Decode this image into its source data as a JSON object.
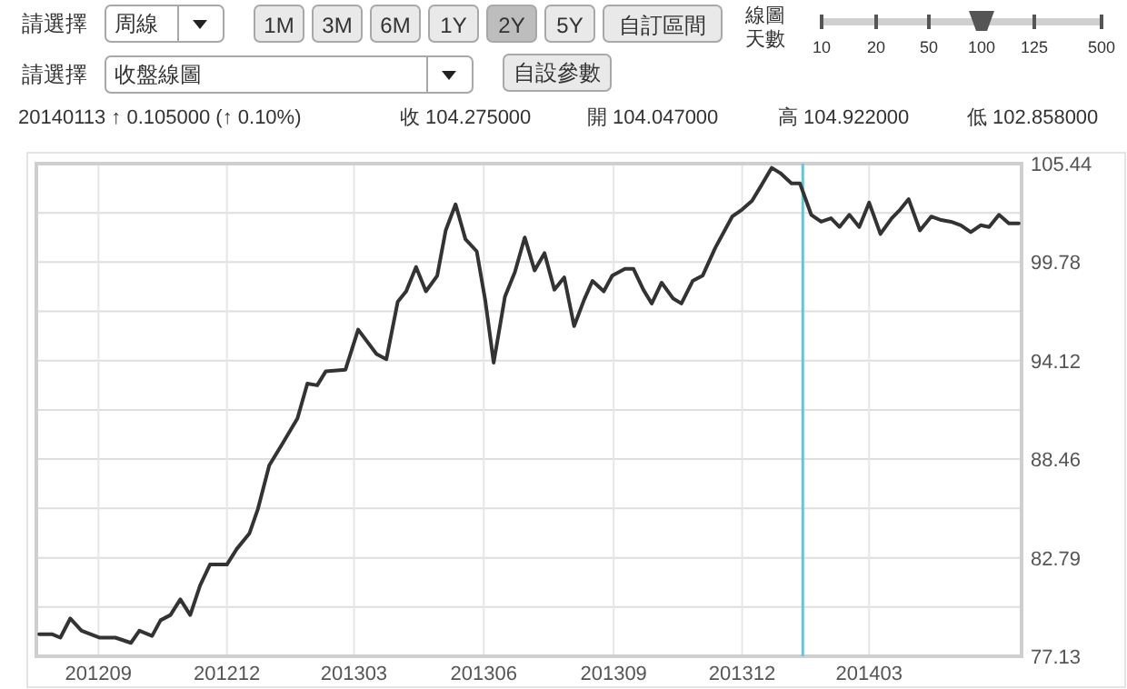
{
  "chart_data": {
    "type": "line",
    "annotations": [
      "請選擇",
      "周線",
      "1M",
      "3M",
      "6M",
      "1Y",
      "2Y",
      "5Y",
      "自訂區間",
      "線圖",
      "天數",
      "10",
      "20",
      "50",
      "100",
      "125",
      "500",
      "請選擇",
      "收盤線圖",
      "自設參數",
      "20140113 ↑ 0.105000 (↑ 0.10%)",
      "收 104.275000",
      "開 104.047000",
      "高 104.922000",
      "低 102.858000"
    ],
    "x": [
      "2012-07-21",
      "2012-07-30",
      "2012-08-05",
      "2012-08-12",
      "2012-08-20",
      "2012-09-02",
      "2012-09-13",
      "2012-09-24",
      "2012-09-30",
      "2012-10-09",
      "2012-10-15",
      "2012-10-22",
      "2012-10-29",
      "2012-11-05",
      "2012-11-12",
      "2012-11-19",
      "2012-12-01",
      "2012-12-08",
      "2012-12-17",
      "2012-12-23",
      "2012-12-31",
      "2013-01-09",
      "2013-01-20",
      "2013-01-27",
      "2013-02-03",
      "2013-02-09",
      "2013-02-23",
      "2013-03-04",
      "2013-03-17",
      "2013-03-24",
      "2013-04-01",
      "2013-04-07",
      "2013-04-14",
      "2013-04-21",
      "2013-04-29",
      "2013-05-05",
      "2013-05-12",
      "2013-05-19",
      "2013-05-27",
      "2013-06-02",
      "2013-06-08",
      "2013-06-16",
      "2013-06-23",
      "2013-06-30",
      "2013-07-07",
      "2013-07-14",
      "2013-07-21",
      "2013-07-28",
      "2013-08-04",
      "2013-08-11",
      "2013-08-17",
      "2013-08-25",
      "2013-08-31",
      "2013-09-09",
      "2013-09-15",
      "2013-09-22",
      "2013-09-28",
      "2013-10-05",
      "2013-10-13",
      "2013-10-19",
      "2013-10-27",
      "2013-11-03",
      "2013-11-12",
      "2013-11-24",
      "2013-12-01",
      "2013-12-08",
      "2013-12-14",
      "2013-12-22",
      "2013-12-28",
      "2014-01-05",
      "2014-01-11",
      "2014-01-19",
      "2014-01-26",
      "2014-02-02",
      "2014-02-08",
      "2014-02-15",
      "2014-02-22",
      "2014-03-01",
      "2014-03-09",
      "2014-03-17",
      "2014-03-23",
      "2014-03-29",
      "2014-04-06",
      "2014-04-14",
      "2014-04-21",
      "2014-04-28",
      "2014-05-05",
      "2014-05-12",
      "2014-05-19",
      "2014-05-25",
      "2014-06-01",
      "2014-06-08",
      "2014-06-15"
    ],
    "series": [
      {
        "color": "#333333",
        "values": [
          78.4,
          78.4,
          78.2,
          79.3,
          78.6,
          78.2,
          78.2,
          77.9,
          78.6,
          78.3,
          79.2,
          79.5,
          80.4,
          79.5,
          81.2,
          82.4,
          82.4,
          83.3,
          84.2,
          85.6,
          88.1,
          89.3,
          90.8,
          92.8,
          92.7,
          93.5,
          93.6,
          95.9,
          94.5,
          94.2,
          97.5,
          98.1,
          99.5,
          98.1,
          99.0,
          101.6,
          103.1,
          101.1,
          100.4,
          97.6,
          94.0,
          97.8,
          99.2,
          101.2,
          99.3,
          100.3,
          98.2,
          98.9,
          96.1,
          97.6,
          98.7,
          98.1,
          99.0,
          99.4,
          99.4,
          98.2,
          97.4,
          98.6,
          97.7,
          97.4,
          98.7,
          99.0,
          100.6,
          102.4,
          102.8,
          103.3,
          104.1,
          105.2,
          104.9,
          104.3,
          104.3,
          102.5,
          102.1,
          102.3,
          101.8,
          102.5,
          101.8,
          103.2,
          101.4,
          102.3,
          102.8,
          103.4,
          101.6,
          102.4,
          102.2,
          102.1,
          101.9,
          101.5,
          101.9,
          101.8,
          102.5,
          102.0,
          102.0
        ]
      }
    ],
    "xlim": [
      "2012-07-19",
      "2014-06-17"
    ],
    "xticks": [
      {
        "value": "2012-09-01",
        "label": "201209"
      },
      {
        "value": "2012-12-01",
        "label": "201212"
      },
      {
        "value": "2013-03-01",
        "label": "201303"
      },
      {
        "value": "2013-06-01",
        "label": "201306"
      },
      {
        "value": "2013-09-01",
        "label": "201309"
      },
      {
        "value": "2013-12-01",
        "label": "201312"
      },
      {
        "value": "2014-03-01",
        "label": "201403"
      }
    ],
    "ylim": [
      77.13,
      105.44
    ],
    "yticks": [
      77.13,
      {
        "value": 79.96,
        "label": null
      },
      82.79,
      {
        "value": 85.63,
        "label": null
      },
      88.46,
      {
        "value": 91.29,
        "label": null
      },
      94.12,
      {
        "value": 96.95,
        "label": null
      },
      99.78,
      {
        "value": 102.61,
        "label": null
      },
      105.44
    ],
    "grid": true,
    "ref_lines": [
      {
        "axis": "x",
        "value": "2014-01-13",
        "color": "#6cc3cf"
      }
    ]
  }
}
